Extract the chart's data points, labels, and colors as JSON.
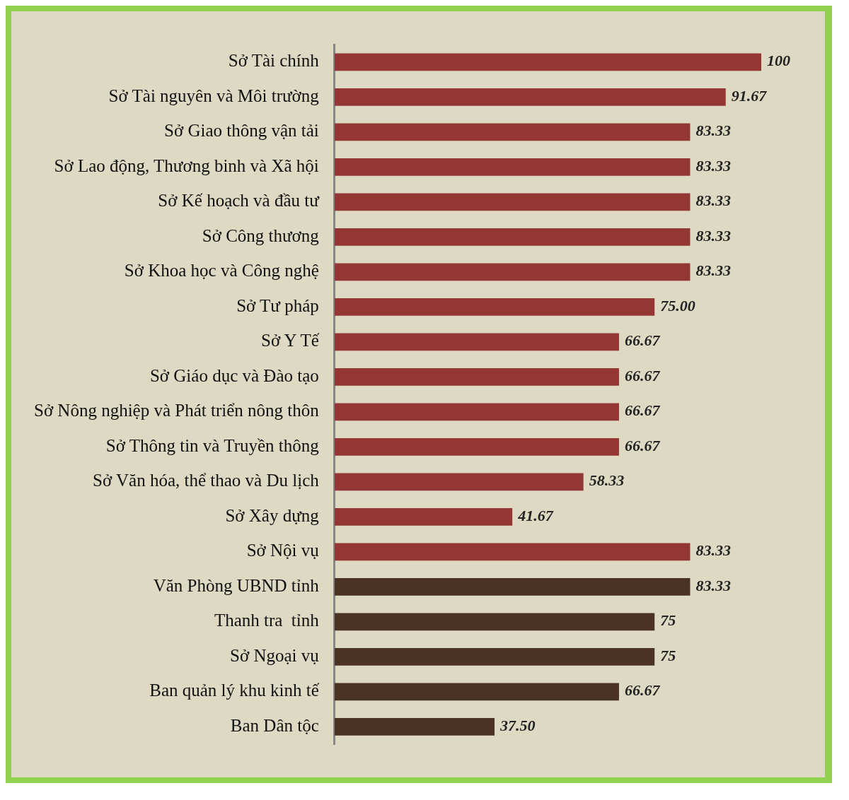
{
  "chart_data": {
    "type": "bar",
    "orientation": "horizontal",
    "categories": [
      "Sở Tài chính",
      "Sở Tài nguyên và Môi trường",
      "Sở Giao thông vận tải",
      "Sở Lao động, Thương binh và Xã hội",
      "Sở Kế hoạch và đầu tư",
      "Sở Công thương",
      "Sở Khoa học và Công nghệ",
      "Sở Tư pháp",
      "Sở Y Tế",
      "Sở Giáo dục và Đào tạo",
      "Sở Nông nghiệp và Phát triển nông thôn",
      "Sở Thông tin và Truyền thông",
      "Sở Văn hóa, thể thao và Du lịch",
      "Sở Xây dựng",
      "Sở Nội vụ",
      "Văn Phòng UBND tỉnh",
      "Thanh tra  tỉnh",
      "Sở Ngoại vụ",
      "Ban quản lý khu kinh tế",
      "Ban Dân tộc"
    ],
    "values": [
      100,
      91.67,
      83.33,
      83.33,
      83.33,
      83.33,
      83.33,
      75,
      66.67,
      66.67,
      66.67,
      66.67,
      58.33,
      41.67,
      83.33,
      83.33,
      75,
      75,
      66.67,
      37.5
    ],
    "value_labels": [
      "100",
      "91.67",
      "83.33",
      "83.33",
      "83.33",
      "83.33",
      "83.33",
      "75.00",
      "66.67",
      "66.67",
      "66.67",
      "66.67",
      "58.33",
      "41.67",
      "83.33",
      "83.33",
      "75",
      "75",
      "66.67",
      "37.50"
    ],
    "colors": [
      "#943634",
      "#943634",
      "#943634",
      "#943634",
      "#943634",
      "#943634",
      "#943634",
      "#943634",
      "#943634",
      "#943634",
      "#943634",
      "#943634",
      "#943634",
      "#943634",
      "#943634",
      "#4a3322",
      "#4a3322",
      "#4a3322",
      "#4a3322",
      "#4a3322"
    ],
    "grid": false,
    "legend": false
  }
}
